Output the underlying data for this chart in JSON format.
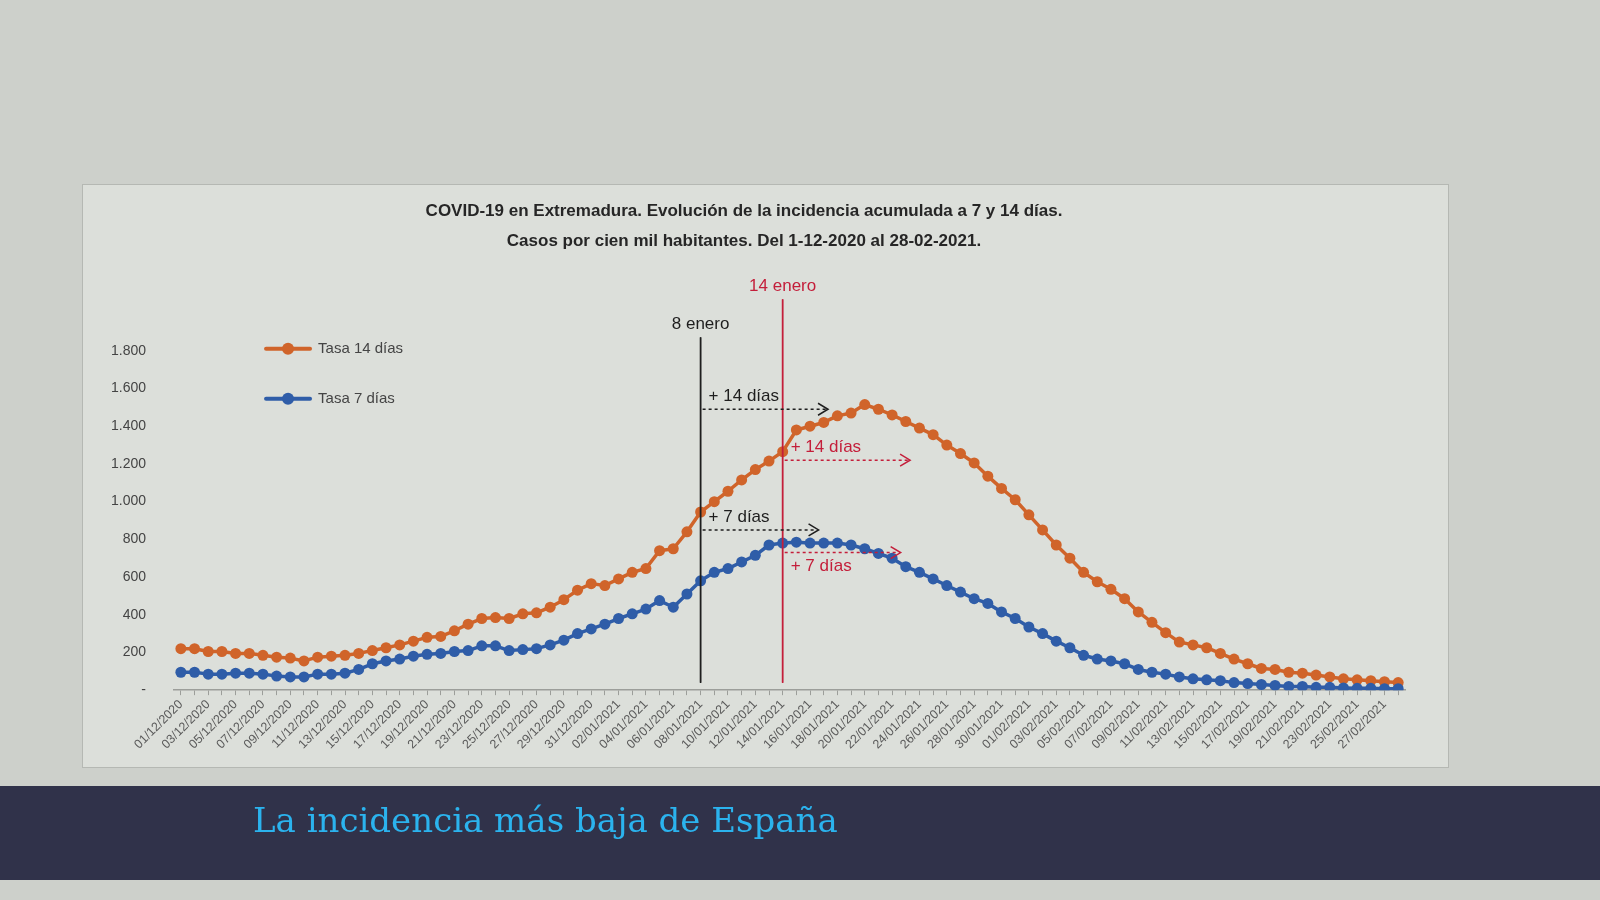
{
  "chart_data": {
    "type": "line",
    "title": "COVID-19 en Extremadura. Evolución de la incidencia acumulada a 7 y 14 días.",
    "subtitle": "Casos por cien mil habitantes. Del 1-12-2020 al 28-02-2021.",
    "categories": [
      "01/12/2020",
      null,
      "03/12/2020",
      null,
      "05/12/2020",
      null,
      "07/12/2020",
      null,
      "09/12/2020",
      null,
      "11/12/2020",
      null,
      "13/12/2020",
      null,
      "15/12/2020",
      null,
      "17/12/2020",
      null,
      "19/12/2020",
      null,
      "21/12/2020",
      null,
      "23/12/2020",
      null,
      "25/12/2020",
      null,
      "27/12/2020",
      null,
      "29/12/2020",
      null,
      "31/12/2020",
      null,
      "02/01/2021",
      null,
      "04/01/2021",
      null,
      "06/01/2021",
      null,
      "08/01/2021",
      null,
      "10/01/2021",
      null,
      "12/01/2021",
      null,
      "14/01/2021",
      null,
      "16/01/2021",
      null,
      "18/01/2021",
      null,
      "20/01/2021",
      null,
      "22/01/2021",
      null,
      "24/01/2021",
      null,
      "26/01/2021",
      null,
      "28/01/2021",
      null,
      "30/01/2021",
      null,
      "01/02/2021",
      null,
      "03/02/2021",
      null,
      "05/02/2021",
      null,
      "07/02/2021",
      null,
      "09/02/2021",
      null,
      "11/02/2021",
      null,
      "13/02/2021",
      null,
      "15/02/2021",
      null,
      "17/02/2021",
      null,
      "19/02/2021",
      null,
      "21/02/2021",
      null,
      "23/02/2021",
      null,
      "25/02/2021",
      null,
      "27/02/2021",
      null
    ],
    "series": [
      {
        "name": "Tasa 14 días",
        "color": "#d0642a",
        "values": [
          220,
          220,
          205,
          205,
          195,
          195,
          185,
          175,
          170,
          155,
          175,
          180,
          185,
          195,
          210,
          225,
          240,
          260,
          280,
          285,
          315,
          350,
          380,
          385,
          380,
          405,
          410,
          440,
          480,
          530,
          565,
          555,
          590,
          625,
          645,
          740,
          750,
          840,
          945,
          1000,
          1055,
          1115,
          1170,
          1215,
          1265,
          1380,
          1400,
          1420,
          1455,
          1470,
          1515,
          1490,
          1460,
          1425,
          1390,
          1355,
          1300,
          1255,
          1205,
          1135,
          1070,
          1010,
          930,
          850,
          770,
          700,
          625,
          575,
          535,
          485,
          415,
          360,
          305,
          255,
          240,
          225,
          195,
          165,
          140,
          115,
          110,
          95,
          90,
          80,
          70,
          60,
          55,
          50,
          45,
          40
        ]
      },
      {
        "name": "Tasa 7 días",
        "color": "#2f5da8",
        "values": [
          95,
          95,
          85,
          85,
          90,
          90,
          85,
          75,
          70,
          70,
          85,
          85,
          90,
          110,
          140,
          155,
          165,
          180,
          190,
          195,
          205,
          210,
          235,
          235,
          210,
          215,
          220,
          240,
          265,
          300,
          325,
          350,
          380,
          405,
          430,
          475,
          440,
          510,
          580,
          625,
          645,
          680,
          715,
          770,
          780,
          785,
          780,
          780,
          780,
          770,
          750,
          725,
          700,
          655,
          625,
          590,
          555,
          520,
          485,
          460,
          415,
          380,
          335,
          300,
          260,
          225,
          185,
          165,
          155,
          140,
          110,
          95,
          85,
          70,
          60,
          55,
          50,
          40,
          35,
          30,
          25,
          20,
          20,
          15,
          15,
          12,
          10,
          10,
          8,
          8
        ]
      }
    ],
    "ylim": [
      0,
      1800
    ],
    "yticks": [
      {
        "value": 0,
        "label": "-"
      },
      200,
      400,
      600,
      800,
      {
        "value": 1000,
        "label": "1.000"
      },
      {
        "value": 1200,
        "label": "1.200"
      },
      {
        "value": 1400,
        "label": "1.400"
      },
      {
        "value": 1600,
        "label": "1.600"
      },
      {
        "value": 1800,
        "label": "1.800"
      }
    ],
    "legend": "top left",
    "marker": "circle",
    "line_style": "solid",
    "ref_lines": [
      {
        "axis": "x",
        "value": "08/01/2021",
        "label": "8 enero",
        "color": "#1e1e1e"
      },
      {
        "axis": "x",
        "value": "14/01/2021",
        "label": "14 enero",
        "color": "#c41e3a"
      }
    ],
    "annotations": [
      {
        "text": "+ 14 días",
        "x": "08/01/2021",
        "y": 1490
      },
      {
        "text": "+ 14 días",
        "x": "14/01/2021",
        "y": 1220
      },
      {
        "text": "+ 7 días",
        "x": "08/01/2021",
        "y": 850
      },
      {
        "text": "+ 7 días",
        "x": "14/01/2021",
        "y": 730
      },
      "La incidencia más baja de España"
    ]
  }
}
